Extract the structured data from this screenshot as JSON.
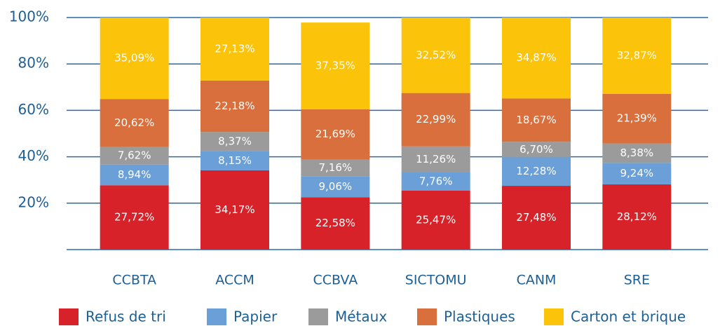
{
  "chart_data": {
    "type": "stacked_bar",
    "categories": [
      "CCBTA",
      "ACCM",
      "CCBVA",
      "SICTOMU",
      "CANM",
      "SRE"
    ],
    "series": [
      {
        "name": "Refus de tri",
        "color": "#d7222a",
        "values": [
          27.72,
          34.17,
          22.58,
          25.47,
          27.48,
          28.12
        ],
        "value_labels": [
          "27,72%",
          "34,17%",
          "22,58%",
          "25,47%",
          "27,48%",
          "28,12%"
        ]
      },
      {
        "name": "Papier",
        "color": "#6a9fd8",
        "values": [
          8.94,
          8.15,
          9.06,
          7.76,
          12.28,
          9.24
        ],
        "value_labels": [
          "8,94%",
          "8,15%",
          "9,06%",
          "7,76%",
          "12,28%",
          "9,24%"
        ]
      },
      {
        "name": "Métaux",
        "color": "#9b9b9b",
        "values": [
          7.62,
          8.37,
          7.16,
          11.26,
          6.7,
          8.38
        ],
        "value_labels": [
          "7,62%",
          "8,37%",
          "7,16%",
          "11,26%",
          "6,70%",
          "8,38%"
        ]
      },
      {
        "name": "Plastiques",
        "color": "#d96f3c",
        "values": [
          20.62,
          22.18,
          21.69,
          22.99,
          18.67,
          21.39
        ],
        "value_labels": [
          "20,62%",
          "22,18%",
          "21,69%",
          "22,99%",
          "18,67%",
          "21,39%"
        ]
      },
      {
        "name": "Carton et brique",
        "color": "#fcc30b",
        "values": [
          35.09,
          27.13,
          37.35,
          32.52,
          34.87,
          32.87
        ],
        "value_labels": [
          "35,09%",
          "27,13%",
          "37,35%",
          "32,52%",
          "34,87%",
          "32,87%"
        ]
      }
    ],
    "ylim": [
      0,
      100
    ],
    "yticks": [
      {
        "value": 20,
        "label": "20%"
      },
      {
        "value": 40,
        "label": "40%"
      },
      {
        "value": 60,
        "label": "60%"
      },
      {
        "value": 80,
        "label": "80%"
      },
      {
        "value": 100,
        "label": "100%"
      }
    ],
    "grid": true,
    "legend": "bottom"
  }
}
